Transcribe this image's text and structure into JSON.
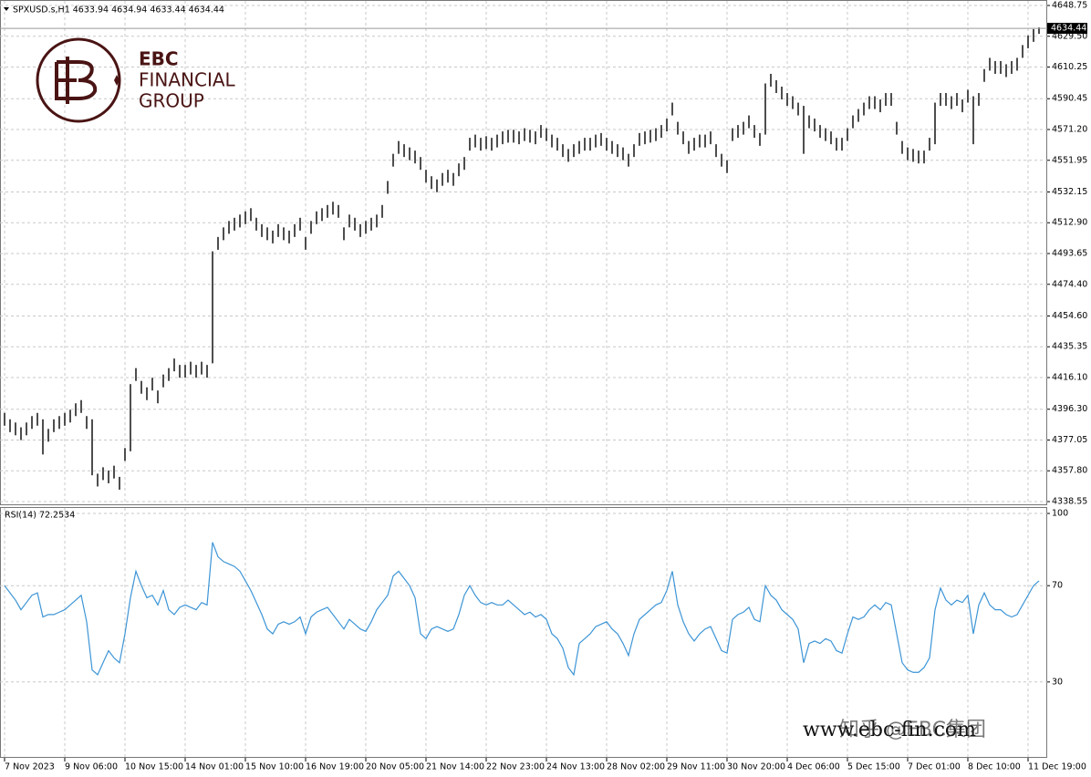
{
  "chart_data": [
    {
      "type": "ohlc",
      "header": "SPXUSD.s,H1  4633.94 4634.94 4633.44 4634.44",
      "color": "#222222",
      "ylim": [
        4338.55,
        4648.75
      ],
      "yticks": [
        4648.75,
        {
          "value": 4629.5,
          "label": "4629.50"
        },
        4610.25,
        4590.45,
        {
          "value": 4571.2,
          "label": "4571.20"
        },
        4551.95,
        4532.15,
        {
          "value": 4512.9,
          "label": "4512.90"
        },
        4493.65,
        {
          "value": 4474.4,
          "label": "4474.40"
        },
        {
          "value": 4454.6,
          "label": "4454.60"
        },
        4435.35,
        {
          "value": 4416.1,
          "label": "4416.10"
        },
        {
          "value": 4396.3,
          "label": "4396.30"
        },
        4377.05,
        {
          "value": 4357.8,
          "label": "4357.80"
        },
        4338.55
      ],
      "grid": true,
      "last_price": 4634.44,
      "high": [
        4394,
        4390,
        4388,
        4385,
        4388,
        4392,
        4394,
        4390,
        4384,
        4390,
        4392,
        4394,
        4396,
        4400,
        4402,
        4392,
        4390,
        4356,
        4360,
        4358,
        4361,
        4354,
        4372,
        4412,
        4422,
        4414,
        4410,
        4416,
        4408,
        4418,
        4422,
        4428,
        4424,
        4424,
        4426,
        4424,
        4426,
        4424,
        4495,
        4504,
        4510,
        4514,
        4516,
        4518,
        4520,
        4522,
        4516,
        4512,
        4510,
        4508,
        4512,
        4510,
        4508,
        4512,
        4516,
        4504,
        4514,
        4520,
        4522,
        4524,
        4526,
        4524,
        4510,
        4518,
        4516,
        4512,
        4514,
        4516,
        4518,
        4524,
        4539,
        4556,
        4564,
        4562,
        4560,
        4558,
        4554,
        4546,
        4542,
        4540,
        4544,
        4546,
        4544,
        4550,
        4554,
        4566,
        4568,
        4566,
        4567,
        4566,
        4568,
        4570,
        4571,
        4571,
        4570,
        4572,
        4571,
        4570,
        4574,
        4572,
        4568,
        4566,
        4562,
        4559,
        4562,
        4564,
        4566,
        4566,
        4568,
        4569,
        4566,
        4564,
        4562,
        4560,
        4556,
        4562,
        4569,
        4570,
        4571,
        4572,
        4574,
        4578,
        4588,
        4576,
        4570,
        4564,
        4566,
        4568,
        4568,
        4570,
        4562,
        4556,
        4552,
        4572,
        4574,
        4576,
        4580,
        4574,
        4569,
        4600,
        4606,
        4602,
        4598,
        4594,
        4592,
        4588,
        4586,
        4580,
        4578,
        4574,
        4572,
        4570,
        4566,
        4566,
        4572,
        4580,
        4584,
        4588,
        4592,
        4592,
        4590,
        4594,
        4594,
        4576,
        4564,
        4560,
        4559,
        4558,
        4558,
        4566,
        4588,
        4594,
        4594,
        4592,
        4594,
        4590,
        4596,
        4592,
        4594,
        4609,
        4616,
        4614,
        4614,
        4612,
        4614,
        4616,
        4624,
        4630,
        4634,
        4635
      ],
      "low": [
        4386,
        4382,
        4380,
        4377,
        4380,
        4384,
        4386,
        4368,
        4376,
        4382,
        4384,
        4386,
        4388,
        4392,
        4394,
        4384,
        4355,
        4348,
        4352,
        4350,
        4353,
        4346,
        4364,
        4370,
        4414,
        4406,
        4402,
        4408,
        4400,
        4410,
        4414,
        4420,
        4416,
        4416,
        4418,
        4416,
        4418,
        4416,
        4425,
        4496,
        4502,
        4506,
        4508,
        4510,
        4512,
        4514,
        4508,
        4504,
        4502,
        4500,
        4504,
        4502,
        4500,
        4504,
        4508,
        4496,
        4506,
        4512,
        4514,
        4516,
        4518,
        4516,
        4502,
        4510,
        4508,
        4504,
        4506,
        4508,
        4510,
        4516,
        4531,
        4548,
        4556,
        4554,
        4552,
        4550,
        4546,
        4538,
        4534,
        4532,
        4536,
        4538,
        4536,
        4542,
        4546,
        4558,
        4560,
        4558,
        4559,
        4558,
        4560,
        4562,
        4563,
        4563,
        4562,
        4564,
        4563,
        4562,
        4566,
        4564,
        4560,
        4558,
        4554,
        4551,
        4554,
        4556,
        4558,
        4558,
        4560,
        4561,
        4558,
        4556,
        4554,
        4552,
        4548,
        4554,
        4561,
        4562,
        4563,
        4564,
        4566,
        4570,
        4580,
        4568,
        4562,
        4556,
        4558,
        4560,
        4560,
        4562,
        4554,
        4548,
        4544,
        4564,
        4566,
        4568,
        4572,
        4566,
        4561,
        4568,
        4598,
        4594,
        4590,
        4586,
        4584,
        4580,
        4556,
        4572,
        4570,
        4566,
        4564,
        4562,
        4558,
        4558,
        4564,
        4572,
        4576,
        4580,
        4584,
        4584,
        4582,
        4586,
        4586,
        4568,
        4556,
        4552,
        4551,
        4550,
        4550,
        4558,
        4562,
        4586,
        4586,
        4584,
        4586,
        4582,
        4588,
        4562,
        4586,
        4601,
        4608,
        4606,
        4606,
        4604,
        4606,
        4608,
        4616,
        4622,
        4626,
        4631
      ]
    },
    {
      "type": "line",
      "indicator": "RSI(14) 72.2534",
      "color": "#3d95d6",
      "ylim": [
        0,
        100
      ],
      "yticks": [
        100,
        70,
        30
      ],
      "grid": true,
      "categories": [
        "7 Nov 2023",
        null,
        null,
        null,
        null,
        null,
        null,
        null,
        null,
        null,
        null,
        "9 Nov 06:00",
        null,
        null,
        null,
        null,
        null,
        null,
        null,
        null,
        null,
        null,
        "10 Nov 15:00",
        null,
        null,
        null,
        null,
        null,
        null,
        null,
        null,
        null,
        null,
        "14 Nov 01:00",
        null,
        null,
        null,
        null,
        null,
        null,
        null,
        null,
        null,
        null,
        "15 Nov 10:00",
        null,
        null,
        null,
        null,
        null,
        null,
        null,
        null,
        null,
        null,
        "16 Nov 19:00",
        null,
        null,
        null,
        null,
        null,
        null,
        null,
        null,
        null,
        null,
        "20 Nov 05:00",
        null,
        null,
        null,
        null,
        null,
        null,
        null,
        null,
        null,
        null,
        "21 Nov 14:00",
        null,
        null,
        null,
        null,
        null,
        null,
        null,
        null,
        null,
        null,
        "22 Nov 23:00",
        null,
        null,
        null,
        null,
        null,
        null,
        null,
        null,
        null,
        null,
        "24 Nov 13:00",
        null,
        null,
        null,
        null,
        null,
        null,
        null,
        null,
        null,
        null,
        "28 Nov 02:00",
        null,
        null,
        null,
        null,
        null,
        null,
        null,
        null,
        null,
        null,
        "29 Nov 11:00",
        null,
        null,
        null,
        null,
        null,
        null,
        null,
        null,
        null,
        null,
        "30 Nov 20:00",
        null,
        null,
        null,
        null,
        null,
        null,
        null,
        null,
        null,
        null,
        "4 Dec 06:00",
        null,
        null,
        null,
        null,
        null,
        null,
        null,
        null,
        null,
        null,
        "5 Dec 15:00",
        null,
        null,
        null,
        null,
        null,
        null,
        null,
        null,
        null,
        null,
        "7 Dec 01:00",
        null,
        null,
        null,
        null,
        null,
        null,
        null,
        null,
        null,
        null,
        "8 Dec 10:00",
        null,
        null,
        null,
        null,
        null,
        null,
        null,
        null,
        null,
        null,
        "11 Dec 19:00",
        null,
        null
      ],
      "values": [
        70,
        67,
        64,
        60,
        63,
        66,
        67,
        57,
        58,
        58,
        59,
        60,
        62,
        64,
        66,
        55,
        35,
        33,
        38,
        43,
        40,
        38,
        50,
        65,
        76,
        70,
        65,
        66,
        62,
        68,
        60,
        58,
        61,
        62,
        61,
        60,
        63,
        62,
        88,
        82,
        80,
        79,
        78,
        76,
        72,
        68,
        63,
        58,
        52,
        50,
        54,
        55,
        54,
        55,
        57,
        50,
        57,
        59,
        60,
        61,
        58,
        55,
        52,
        56,
        54,
        52,
        51,
        55,
        60,
        63,
        66,
        74,
        76,
        73,
        70,
        65,
        50,
        48,
        52,
        53,
        52,
        51,
        52,
        58,
        66,
        70,
        66,
        63,
        62,
        63,
        62,
        62,
        64,
        62,
        60,
        58,
        59,
        57,
        58,
        56,
        50,
        48,
        44,
        36,
        33,
        46,
        48,
        50,
        53,
        54,
        55,
        52,
        50,
        46,
        41,
        50,
        56,
        58,
        60,
        62,
        63,
        68,
        76,
        62,
        55,
        50,
        47,
        50,
        52,
        53,
        48,
        43,
        42,
        56,
        58,
        59,
        61,
        56,
        55,
        70,
        66,
        64,
        60,
        58,
        56,
        52,
        38,
        46,
        47,
        46,
        48,
        47,
        43,
        42,
        50,
        57,
        56,
        57,
        60,
        62,
        60,
        63,
        62,
        50,
        38,
        35,
        34,
        34,
        36,
        40,
        60,
        69,
        64,
        62,
        64,
        63,
        66,
        50,
        62,
        67,
        62,
        60,
        60,
        58,
        57,
        58,
        62,
        66,
        70,
        72
      ]
    }
  ],
  "logo": {
    "line1": "EBC",
    "line2": "FINANCIAL",
    "line3": "GROUP"
  },
  "watermark": {
    "site": "www.ebc-fin.com",
    "source": "知乎 @EBC集团"
  }
}
